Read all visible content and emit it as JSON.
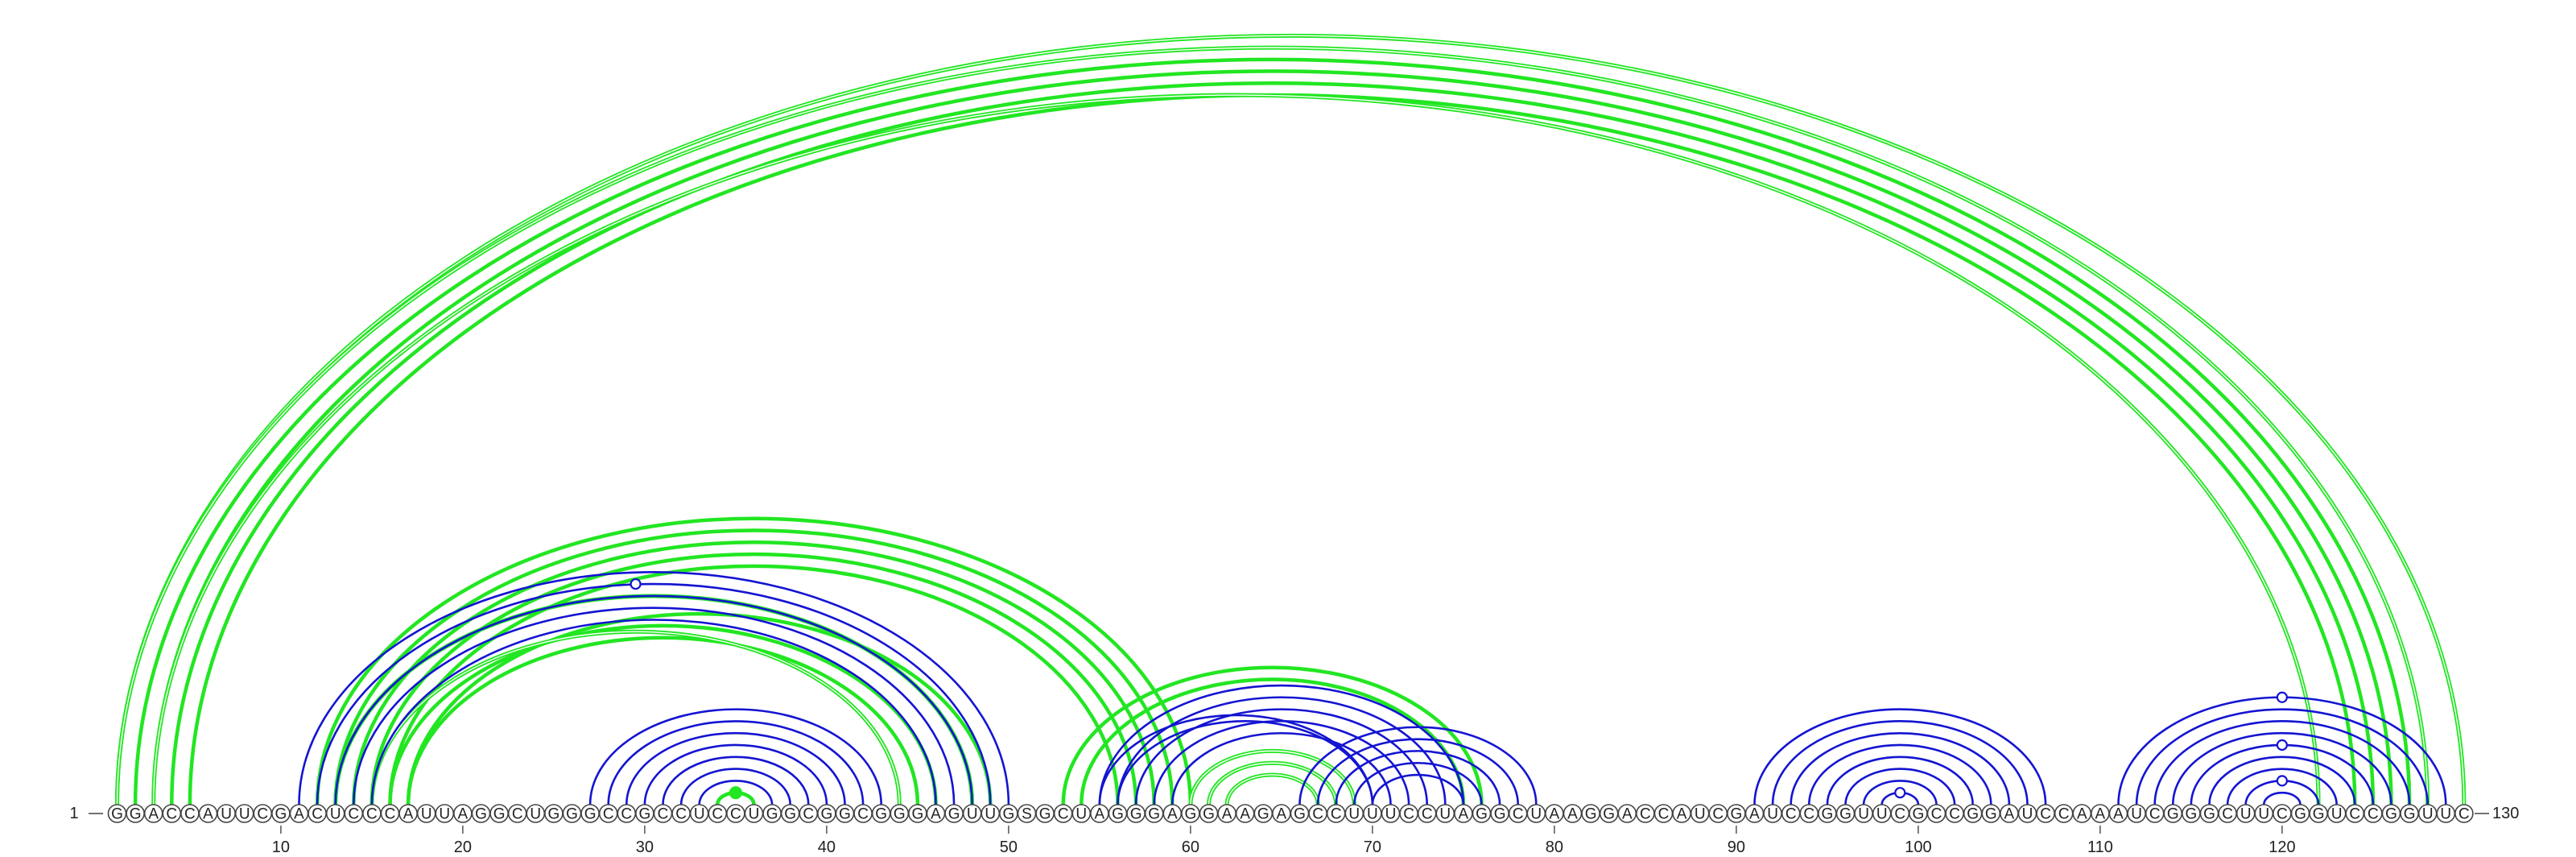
{
  "diagram": {
    "type": "rna-arc-diagram",
    "sequence": "GGACCAUUCGACUCCCAUUAGGCUGGGCCGCCUCCUGGCGGCGGGAGUUGSGCUAGGGAGGAAGAGCCUUUCCUAGGCUAAGGACCAUCGAUCCGGUUCGCCGGAUCCAAAUCGGGCUUCGGUCCGGUUC",
    "start_label": "1",
    "end_label": "130",
    "ticks": [
      "10",
      "20",
      "30",
      "40",
      "50",
      "60",
      "70",
      "80",
      "90",
      "100",
      "110",
      "120"
    ],
    "colors": {
      "green": "#22e622",
      "blue": "#1414d2"
    },
    "arc_groups": [
      {
        "color": "green",
        "style": "double",
        "pairs": [
          [
            1,
            130
          ]
        ]
      },
      {
        "color": "green",
        "style": "thick",
        "pairs": [
          [
            2,
            127
          ],
          [
            3,
            126
          ],
          [
            4,
            125
          ],
          [
            5,
            124
          ]
        ]
      },
      {
        "color": "green",
        "style": "double",
        "pairs": [
          [
            1,
            128
          ],
          [
            3,
            122
          ]
        ]
      },
      {
        "color": "green",
        "style": "thick",
        "pairs": [
          [
            12,
            60
          ],
          [
            13,
            59
          ],
          [
            14,
            58
          ],
          [
            15,
            57
          ],
          [
            16,
            56
          ],
          [
            17,
            49
          ],
          [
            17,
            45
          ],
          [
            16,
            46
          ]
        ]
      },
      {
        "color": "green",
        "style": "double",
        "pairs": [
          [
            13,
            48
          ],
          [
            15,
            44
          ]
        ]
      },
      {
        "color": "blue",
        "style": "single",
        "pairs": [
          [
            11,
            50
          ],
          [
            12,
            49
          ],
          [
            13,
            48
          ],
          [
            14,
            47
          ],
          [
            15,
            46
          ]
        ]
      },
      {
        "color": "blue",
        "style": "single",
        "pairs": [
          [
            27,
            43
          ],
          [
            28,
            42
          ],
          [
            29,
            41
          ],
          [
            30,
            40
          ],
          [
            31,
            39
          ],
          [
            32,
            38
          ],
          [
            33,
            37
          ]
        ]
      },
      {
        "color": "green",
        "style": "thick",
        "pairs": [
          [
            34,
            36
          ]
        ]
      },
      {
        "color": "green",
        "style": "thick",
        "pairs": [
          [
            53,
            76
          ],
          [
            54,
            75
          ]
        ]
      },
      {
        "color": "blue",
        "style": "single",
        "pairs": [
          [
            55,
            75
          ],
          [
            56,
            74
          ],
          [
            57,
            73
          ],
          [
            58,
            72
          ],
          [
            59,
            71
          ],
          [
            55,
            70
          ],
          [
            56,
            70
          ]
        ]
      },
      {
        "color": "green",
        "style": "double",
        "pairs": [
          [
            60,
            69
          ],
          [
            61,
            68
          ],
          [
            62,
            67
          ]
        ]
      },
      {
        "color": "blue",
        "style": "single",
        "pairs": [
          [
            66,
            79
          ],
          [
            67,
            78
          ],
          [
            68,
            77
          ],
          [
            69,
            76
          ],
          [
            70,
            75
          ]
        ]
      },
      {
        "color": "blue",
        "style": "single",
        "pairs": [
          [
            91,
            107
          ],
          [
            92,
            106
          ],
          [
            93,
            105
          ],
          [
            94,
            104
          ],
          [
            95,
            103
          ],
          [
            96,
            102
          ],
          [
            97,
            101
          ],
          [
            98,
            100
          ]
        ]
      },
      {
        "color": "blue",
        "style": "single",
        "pairs": [
          [
            111,
            129
          ],
          [
            112,
            128
          ],
          [
            113,
            127
          ],
          [
            114,
            126
          ],
          [
            115,
            125
          ],
          [
            116,
            124
          ],
          [
            117,
            123
          ],
          [
            118,
            122
          ],
          [
            119,
            121
          ]
        ]
      }
    ],
    "markers": [
      {
        "color": "blue",
        "filled": false,
        "pair": [
          11,
          48
        ]
      },
      {
        "color": "blue",
        "filled": false,
        "pair": [
          111,
          129
        ]
      },
      {
        "color": "blue",
        "filled": false,
        "pair": [
          115,
          125
        ]
      },
      {
        "color": "blue",
        "filled": false,
        "pair": [
          118,
          122
        ]
      },
      {
        "color": "blue",
        "filled": false,
        "pair": [
          98,
          100
        ]
      },
      {
        "color": "green",
        "filled": true,
        "pair": [
          34,
          36
        ]
      }
    ]
  }
}
